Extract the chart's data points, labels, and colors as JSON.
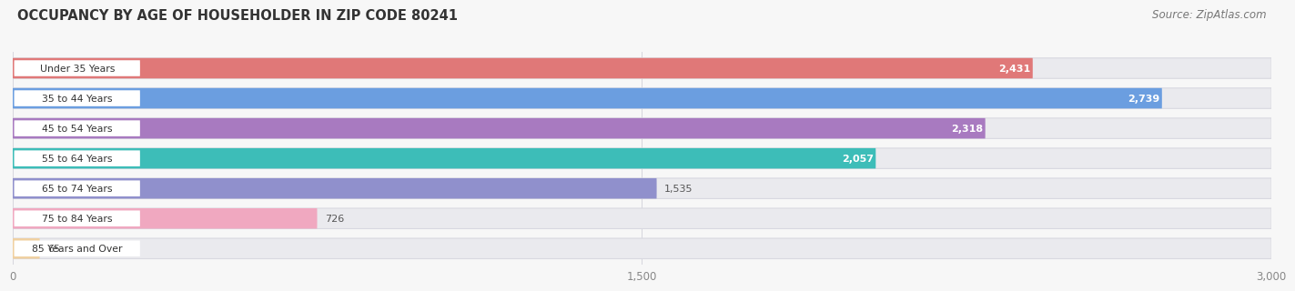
{
  "title": "OCCUPANCY BY AGE OF HOUSEHOLDER IN ZIP CODE 80241",
  "source": "Source: ZipAtlas.com",
  "categories": [
    "Under 35 Years",
    "35 to 44 Years",
    "45 to 54 Years",
    "55 to 64 Years",
    "65 to 74 Years",
    "75 to 84 Years",
    "85 Years and Over"
  ],
  "values": [
    2431,
    2739,
    2318,
    2057,
    1535,
    726,
    65
  ],
  "bar_colors": [
    "#e07878",
    "#6b9ee0",
    "#a87ac0",
    "#3dbdb8",
    "#9090cc",
    "#f0a8c0",
    "#f0d0a0"
  ],
  "bar_bg_color": "#eaeaee",
  "bar_bg_edge_color": "#d8d8e0",
  "xlim_max": 3000,
  "xticks": [
    0,
    1500,
    3000
  ],
  "xtick_labels": [
    "0",
    "1,500",
    "3,000"
  ],
  "label_color_threshold": 1800,
  "title_fontsize": 10.5,
  "source_fontsize": 8.5,
  "bg_color": "#f7f7f7",
  "tick_color": "#888888",
  "value_label_dark": "#555555",
  "value_label_light": "#ffffff"
}
